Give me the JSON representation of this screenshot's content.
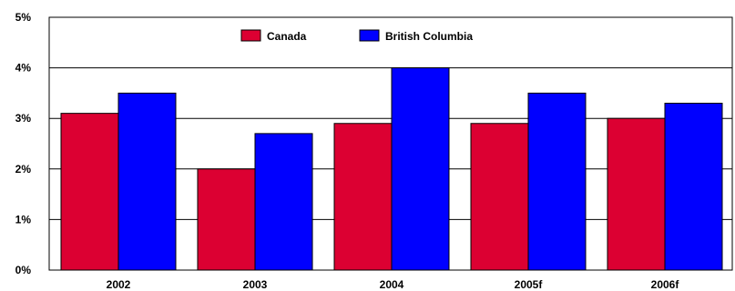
{
  "chart_data": {
    "type": "bar",
    "categories": [
      "2002",
      "2003",
      "2004",
      "2005f",
      "2006f"
    ],
    "series": [
      {
        "name": "Canada",
        "color": "#dc0032",
        "values": [
          3.1,
          2.0,
          2.9,
          2.9,
          3.0
        ]
      },
      {
        "name": "British Columbia",
        "color": "#0000ff",
        "values": [
          3.5,
          2.7,
          4.0,
          3.5,
          3.3
        ]
      }
    ],
    "ylim": [
      0,
      5
    ],
    "yticks": [
      {
        "value": 0,
        "label": "0%"
      },
      {
        "value": 1,
        "label": "1%"
      },
      {
        "value": 2,
        "label": "2%"
      },
      {
        "value": 3,
        "label": "3%"
      },
      {
        "value": 4,
        "label": "4%"
      },
      {
        "value": 5,
        "label": "5%"
      }
    ],
    "grid": true,
    "legend": "top-center"
  }
}
